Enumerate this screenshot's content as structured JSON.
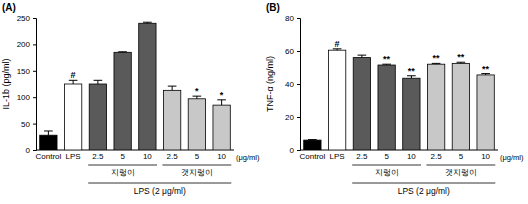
{
  "chart_data": [
    {
      "type": "bar",
      "title": "(A)",
      "y_label": "IL-1b (pg/ml)",
      "categories": [
        "Control",
        "LPS",
        "2.5",
        "5",
        "10",
        "2.5",
        "5",
        "10"
      ],
      "values": [
        28,
        125,
        125,
        185,
        240,
        113,
        97,
        85
      ],
      "errors": [
        8,
        7,
        7,
        1,
        2,
        8,
        5,
        10
      ],
      "colors": [
        "#000000",
        "#ffffff",
        "#5a5a5a",
        "#5a5a5a",
        "#5a5a5a",
        "#c8c8c8",
        "#c8c8c8",
        "#c8c8c8"
      ],
      "significance": [
        null,
        "#",
        null,
        null,
        null,
        null,
        "*",
        "*"
      ],
      "groups": [
        {
          "label": "지렁이",
          "start": 2,
          "end": 4
        },
        {
          "label": "갯지렁이",
          "start": 5,
          "end": 7
        }
      ],
      "treatment_label": "LPS (2 μg/ml)",
      "unit_label": "(μg/ml)",
      "ylim": [
        0,
        250
      ],
      "yticks": [
        0,
        50,
        100,
        150,
        200,
        250
      ],
      "grid": false
    },
    {
      "type": "bar",
      "title": "(B)",
      "y_label": "TNF-α (ng/ml)",
      "categories": [
        "Control",
        "LPS",
        "2.5",
        "5",
        "10",
        "2.5",
        "5",
        "10"
      ],
      "values": [
        6,
        60.5,
        56,
        51.5,
        43.5,
        52,
        52.5,
        45.5
      ],
      "errors": [
        0.3,
        0.8,
        1.5,
        0.5,
        1.5,
        0.5,
        0.7,
        0.8
      ],
      "colors": [
        "#000000",
        "#ffffff",
        "#5a5a5a",
        "#5a5a5a",
        "#5a5a5a",
        "#c8c8c8",
        "#c8c8c8",
        "#c8c8c8"
      ],
      "significance": [
        null,
        "#",
        null,
        "**",
        "**",
        "**",
        "**",
        "**"
      ],
      "groups": [
        {
          "label": "지렁이",
          "start": 2,
          "end": 4
        },
        {
          "label": "갯지렁이",
          "start": 5,
          "end": 7
        }
      ],
      "treatment_label": "LPS (2 μg/ml)",
      "unit_label": "(μg/ml)",
      "ylim": [
        0,
        80
      ],
      "yticks": [
        0,
        20,
        40,
        60,
        80
      ],
      "grid": false
    }
  ]
}
